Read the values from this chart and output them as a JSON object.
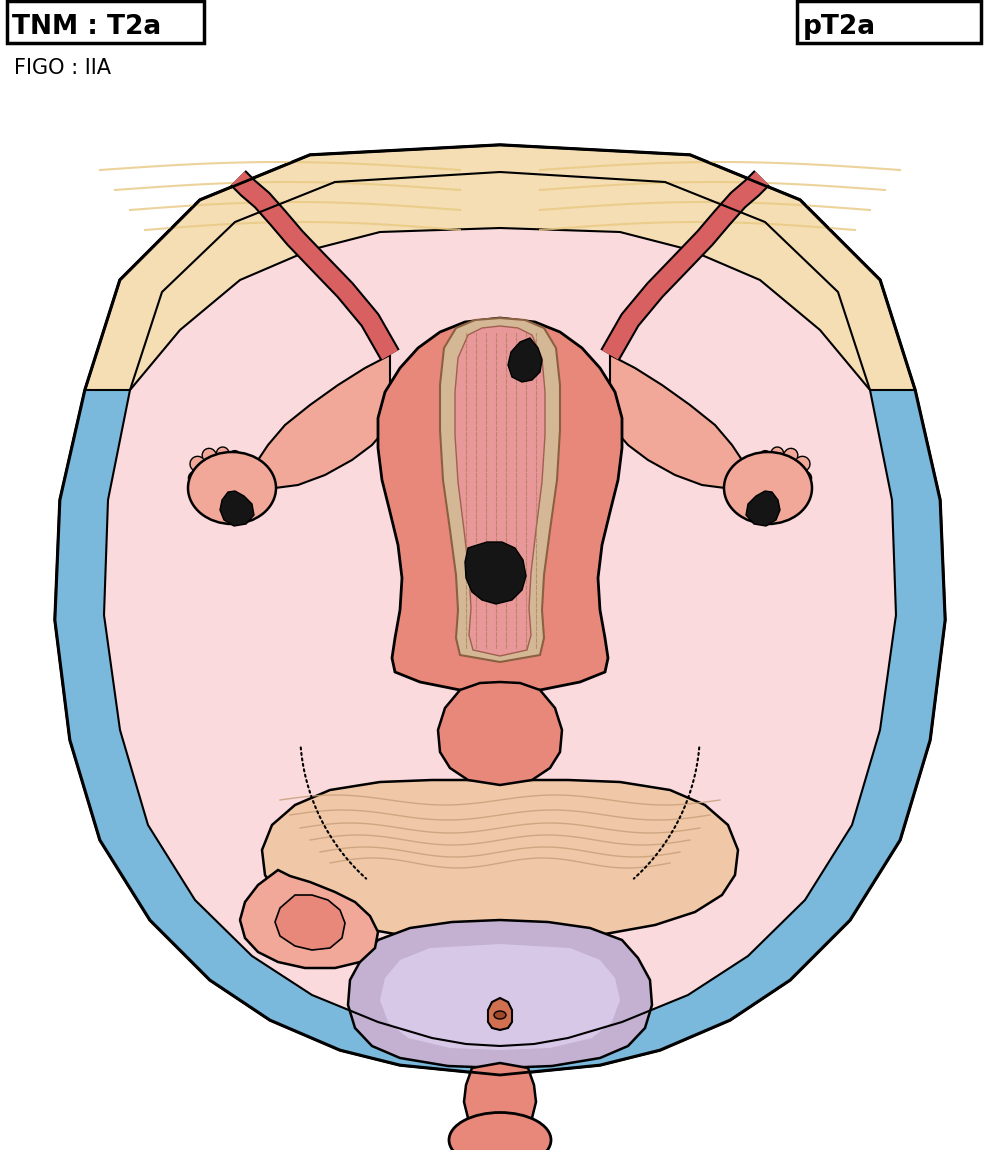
{
  "title_left": "TNM : T2a",
  "title_right": "pT2a",
  "subtitle_left": "FIGO : IIA",
  "bg_color": "#ffffff",
  "body_fill": "#E8887A",
  "body_light": "#F2A898",
  "body_inner": "#FADADD",
  "blue_layer": "#7AB8DC",
  "inner_fill": "#FADADD",
  "uterus_fill": "#E8887A",
  "uterus_light": "#F2A898",
  "pink_tube": "#D96060",
  "ovary_fill": "#F2A898",
  "tumor_color": "#151515",
  "cavity_fill": "#E8B4B8",
  "lining_fill": "#F0D0C0",
  "cervix_fill": "#E8887A",
  "bladder_fill": "#C4B0D0",
  "bladder_light": "#D8C8E8",
  "rectum_fill": "#F0C8A8",
  "cream_fill": "#F5DEB3",
  "cream_dark": "#E8C882"
}
